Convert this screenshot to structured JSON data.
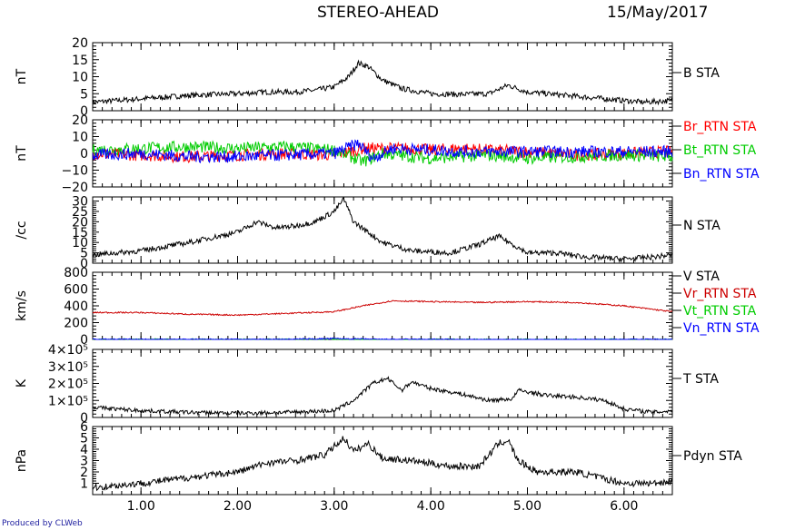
{
  "header": {
    "title": "STEREO-AHEAD",
    "date": "15/May/2017"
  },
  "footer": {
    "credit": "Produced by CLWeb"
  },
  "chart_data": {
    "type": "line",
    "xlim": [
      0.5,
      6.5
    ],
    "x_ticks": [
      1.0,
      2.0,
      3.0,
      4.0,
      5.0,
      6.0
    ],
    "x_tick_labels": [
      "1.00",
      "2.00",
      "3.00",
      "4.00",
      "5.00",
      "6.00"
    ],
    "panels": [
      {
        "ylabel": "nT",
        "ylim": [
          0,
          20
        ],
        "y_ticks": [
          0,
          5,
          10,
          15,
          20
        ],
        "y_tick_labels": [
          "0",
          "5",
          "10",
          "15",
          "20"
        ],
        "series": [
          {
            "name": "B STA",
            "color": "#000000",
            "points": [
              [
                0.5,
                2.5
              ],
              [
                1.0,
                3.5
              ],
              [
                1.5,
                4.5
              ],
              [
                2.0,
                5.0
              ],
              [
                2.3,
                5.5
              ],
              [
                2.6,
                5.5
              ],
              [
                2.8,
                6.0
              ],
              [
                3.0,
                7.0
              ],
              [
                3.15,
                10.0
              ],
              [
                3.25,
                14.0
              ],
              [
                3.35,
                13.0
              ],
              [
                3.5,
                9.0
              ],
              [
                3.7,
                6.5
              ],
              [
                4.0,
                5.0
              ],
              [
                4.3,
                4.8
              ],
              [
                4.6,
                5.0
              ],
              [
                4.8,
                7.5
              ],
              [
                5.0,
                5.5
              ],
              [
                5.4,
                4.5
              ],
              [
                5.8,
                3.5
              ],
              [
                6.2,
                2.5
              ],
              [
                6.5,
                3.0
              ]
            ]
          }
        ]
      },
      {
        "ylabel": "nT",
        "ylim": [
          -20,
          20
        ],
        "y_ticks": [
          -20,
          -10,
          0,
          10,
          20
        ],
        "y_tick_labels": [
          "−20",
          "−10",
          "0",
          "10",
          "20"
        ],
        "series": [
          {
            "name": "Br_RTN STA",
            "color": "#ff0000",
            "points": [
              [
                0.5,
                0
              ],
              [
                1.0,
                -1
              ],
              [
                1.5,
                -2
              ],
              [
                2.0,
                -1
              ],
              [
                2.5,
                0
              ],
              [
                3.0,
                -1
              ],
              [
                3.3,
                3
              ],
              [
                3.5,
                3
              ],
              [
                3.8,
                3
              ],
              [
                4.0,
                2
              ],
              [
                4.3,
                3
              ],
              [
                4.6,
                2
              ],
              [
                5.0,
                1
              ],
              [
                5.5,
                -1
              ],
              [
                6.0,
                0
              ],
              [
                6.5,
                1
              ]
            ]
          },
          {
            "name": "Bt_RTN STA",
            "color": "#00cc00",
            "points": [
              [
                0.5,
                2
              ],
              [
                1.0,
                3
              ],
              [
                1.5,
                4
              ],
              [
                2.0,
                3
              ],
              [
                2.5,
                4
              ],
              [
                3.0,
                2
              ],
              [
                3.3,
                -5
              ],
              [
                3.5,
                0
              ],
              [
                3.8,
                -2
              ],
              [
                4.0,
                -3
              ],
              [
                4.3,
                -2
              ],
              [
                4.6,
                -1
              ],
              [
                5.0,
                -3
              ],
              [
                5.5,
                -2
              ],
              [
                6.0,
                -1
              ],
              [
                6.5,
                -2
              ]
            ]
          },
          {
            "name": "Bn_RTN STA",
            "color": "#0000ff",
            "points": [
              [
                0.5,
                -1
              ],
              [
                1.0,
                0
              ],
              [
                1.5,
                -2
              ],
              [
                2.0,
                -2
              ],
              [
                2.5,
                -1
              ],
              [
                3.0,
                0
              ],
              [
                3.25,
                6
              ],
              [
                3.4,
                -3
              ],
              [
                3.6,
                3
              ],
              [
                4.0,
                2
              ],
              [
                4.3,
                1
              ],
              [
                4.6,
                1
              ],
              [
                5.0,
                1
              ],
              [
                5.5,
                1
              ],
              [
                6.0,
                1
              ],
              [
                6.5,
                1
              ]
            ]
          }
        ]
      },
      {
        "ylabel": "/cc",
        "ylim": [
          0,
          32
        ],
        "y_ticks": [
          0,
          5,
          10,
          15,
          20,
          25,
          30
        ],
        "y_tick_labels": [
          "0",
          "5",
          "10",
          "15",
          "20",
          "25",
          "30"
        ],
        "series": [
          {
            "name": "N STA",
            "color": "#000000",
            "points": [
              [
                0.5,
                4
              ],
              [
                1.0,
                6
              ],
              [
                1.5,
                10
              ],
              [
                2.0,
                15
              ],
              [
                2.2,
                20
              ],
              [
                2.4,
                17
              ],
              [
                2.6,
                18
              ],
              [
                2.8,
                20
              ],
              [
                3.0,
                25
              ],
              [
                3.1,
                31
              ],
              [
                3.2,
                20
              ],
              [
                3.35,
                15
              ],
              [
                3.5,
                10
              ],
              [
                3.8,
                6
              ],
              [
                4.2,
                5
              ],
              [
                4.5,
                9
              ],
              [
                4.7,
                13
              ],
              [
                4.85,
                9
              ],
              [
                5.0,
                5
              ],
              [
                5.3,
                5
              ],
              [
                5.6,
                3
              ],
              [
                6.0,
                2
              ],
              [
                6.3,
                3
              ],
              [
                6.5,
                4
              ]
            ]
          }
        ]
      },
      {
        "ylabel": "km/s",
        "ylim": [
          0,
          800
        ],
        "y_ticks": [
          0,
          200,
          400,
          600,
          800
        ],
        "y_tick_labels": [
          "0",
          "200",
          "400",
          "600",
          "800"
        ],
        "series": [
          {
            "name": "V STA",
            "color": "#000000",
            "points": []
          },
          {
            "name": "Vr_RTN STA",
            "color": "#cc0000",
            "points": [
              [
                0.5,
                320
              ],
              [
                1.0,
                320
              ],
              [
                1.5,
                300
              ],
              [
                2.0,
                290
              ],
              [
                2.5,
                310
              ],
              [
                3.0,
                330
              ],
              [
                3.3,
                400
              ],
              [
                3.6,
                460
              ],
              [
                4.0,
                450
              ],
              [
                4.5,
                440
              ],
              [
                5.0,
                450
              ],
              [
                5.5,
                440
              ],
              [
                6.0,
                400
              ],
              [
                6.5,
                330
              ]
            ]
          },
          {
            "name": "Vt_RTN STA",
            "color": "#00cc00",
            "points": [
              [
                0.5,
                0
              ],
              [
                1.5,
                0
              ],
              [
                2.5,
                0
              ],
              [
                3.0,
                0
              ],
              [
                3.5,
                -10
              ],
              [
                4.0,
                0
              ],
              [
                5.0,
                0
              ],
              [
                6.0,
                0
              ],
              [
                6.5,
                0
              ]
            ]
          },
          {
            "name": "Vn_RTN STA",
            "color": "#0000ff",
            "points": [
              [
                0.5,
                0
              ],
              [
                1.5,
                0
              ],
              [
                2.5,
                0
              ],
              [
                3.0,
                10
              ],
              [
                3.5,
                0
              ],
              [
                4.0,
                0
              ],
              [
                5.0,
                -10
              ],
              [
                6.0,
                0
              ],
              [
                6.5,
                0
              ]
            ]
          }
        ]
      },
      {
        "ylabel": "K",
        "ylim": [
          0,
          400000
        ],
        "y_ticks": [
          0,
          100000,
          200000,
          300000,
          400000
        ],
        "y_tick_labels": [
          "0",
          "1×10⁵",
          "2×10⁵",
          "3×10⁵",
          "4×10⁵"
        ],
        "series": [
          {
            "name": "T STA",
            "color": "#000000",
            "points": [
              [
                0.5,
                60000
              ],
              [
                1.0,
                40000
              ],
              [
                1.5,
                30000
              ],
              [
                2.0,
                25000
              ],
              [
                2.5,
                30000
              ],
              [
                3.0,
                40000
              ],
              [
                3.2,
                100000
              ],
              [
                3.4,
                200000
              ],
              [
                3.55,
                230000
              ],
              [
                3.7,
                160000
              ],
              [
                3.8,
                210000
              ],
              [
                4.0,
                170000
              ],
              [
                4.3,
                140000
              ],
              [
                4.6,
                100000
              ],
              [
                4.85,
                110000
              ],
              [
                4.9,
                160000
              ],
              [
                5.2,
                130000
              ],
              [
                5.5,
                120000
              ],
              [
                5.8,
                100000
              ],
              [
                6.0,
                50000
              ],
              [
                6.3,
                30000
              ],
              [
                6.5,
                40000
              ]
            ]
          }
        ]
      },
      {
        "ylabel": "nPa",
        "ylim": [
          0,
          6
        ],
        "y_ticks": [
          1,
          2,
          3,
          4,
          5,
          6
        ],
        "y_tick_labels": [
          "1",
          "2",
          "3",
          "4",
          "5",
          "6"
        ],
        "series": [
          {
            "name": "Pdyn STA",
            "color": "#000000",
            "points": [
              [
                0.5,
                0.6
              ],
              [
                1.0,
                1.0
              ],
              [
                1.5,
                1.5
              ],
              [
                2.0,
                2.0
              ],
              [
                2.3,
                2.8
              ],
              [
                2.6,
                3.0
              ],
              [
                2.9,
                3.5
              ],
              [
                3.1,
                5.0
              ],
              [
                3.2,
                3.8
              ],
              [
                3.35,
                4.5
              ],
              [
                3.5,
                3.2
              ],
              [
                3.8,
                3.0
              ],
              [
                4.2,
                2.5
              ],
              [
                4.5,
                2.5
              ],
              [
                4.7,
                4.5
              ],
              [
                4.8,
                4.8
              ],
              [
                4.9,
                3.0
              ],
              [
                5.1,
                2.0
              ],
              [
                5.5,
                2.0
              ],
              [
                6.0,
                1.0
              ],
              [
                6.3,
                1.0
              ],
              [
                6.5,
                1.2
              ]
            ]
          }
        ]
      }
    ]
  }
}
